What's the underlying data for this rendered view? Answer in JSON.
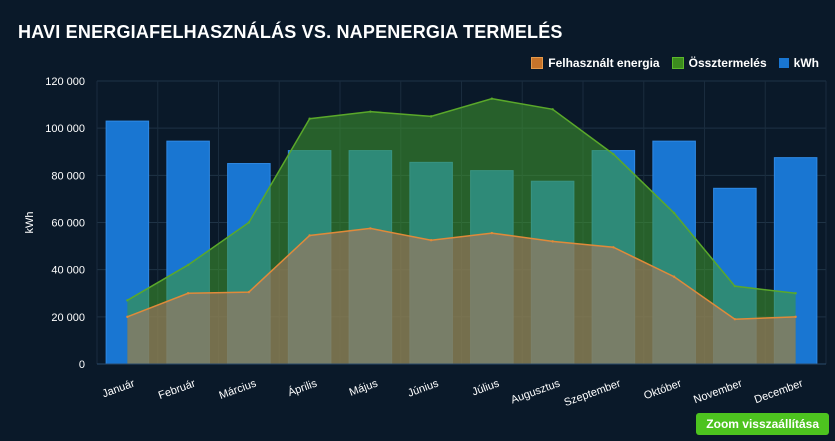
{
  "colors": {
    "background": "#0a1929",
    "bar": "#1976d2",
    "consumption": "#c8742a",
    "production": "#3c8c1e",
    "reset_button": "#4dc31f"
  },
  "reset_button_label": "Zoom visszaállítása",
  "chart_data": {
    "type": "bar",
    "title": "HAVI ENERGIAFELHASZNÁLÁS VS. NAPENERGIA TERMELÉS",
    "ylabel": "kWh",
    "ylim": [
      0,
      120000
    ],
    "yticks": [
      "0",
      "20 000",
      "40 000",
      "60 000",
      "80 000",
      "100 000",
      "120 000"
    ],
    "grid": true,
    "legend_position": "top-right",
    "categories": [
      "Január",
      "Február",
      "Március",
      "Április",
      "Május",
      "Június",
      "Július",
      "Augusztus",
      "Szeptember",
      "Október",
      "November",
      "December"
    ],
    "series": [
      {
        "name": "Felhasznált energia",
        "type": "area",
        "color": "#c8742a",
        "values": [
          20000,
          30000,
          30500,
          54500,
          57500,
          52500,
          55500,
          52000,
          49500,
          37000,
          19000,
          20000
        ]
      },
      {
        "name": "Össztermelés",
        "type": "area",
        "color": "#3c8c1e",
        "values": [
          27000,
          42000,
          60000,
          104000,
          107000,
          105000,
          112500,
          108000,
          89000,
          64000,
          33000,
          30000
        ]
      },
      {
        "name": "kWh",
        "type": "bar",
        "color": "#1976d2",
        "values": [
          103000,
          94500,
          85000,
          90500,
          90500,
          85500,
          82000,
          77500,
          90500,
          94500,
          74500,
          87500
        ]
      }
    ]
  }
}
